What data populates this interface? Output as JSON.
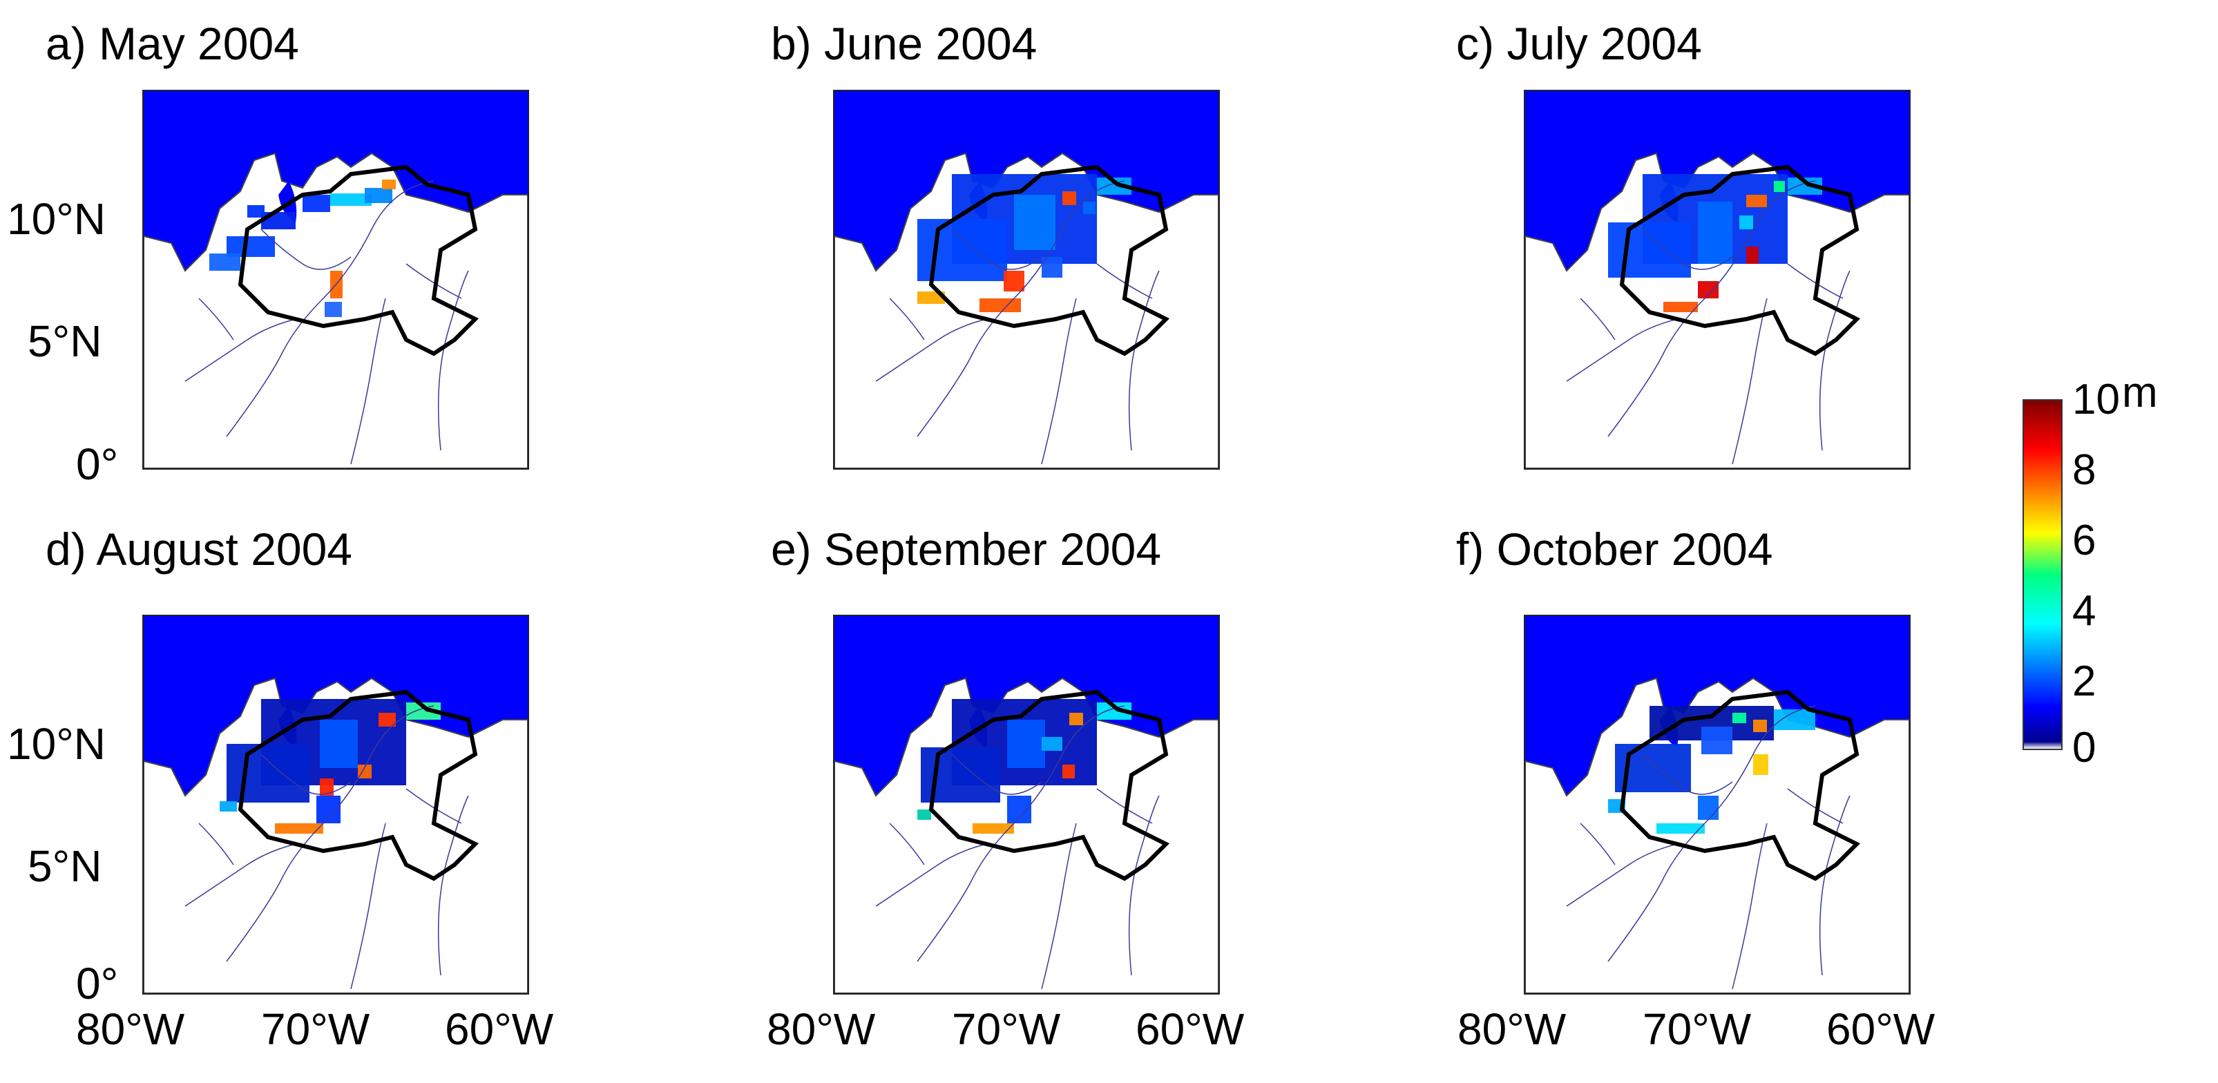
{
  "panels": [
    {
      "title": "a) May 2004"
    },
    {
      "title": "b) June 2004"
    },
    {
      "title": "c) July 2004"
    },
    {
      "title": "d) August 2004"
    },
    {
      "title": "e) September 2004"
    },
    {
      "title": "f) October 2004"
    }
  ],
  "axes": {
    "y_ticks": [
      "10°N",
      "5°N",
      "0°"
    ],
    "x_ticks": [
      "80°W",
      "70°W",
      "60°W"
    ]
  },
  "colorbar": {
    "unit": "m",
    "ticks": [
      "10",
      "8",
      "6",
      "4",
      "2",
      "0"
    ],
    "range": [
      0,
      10
    ],
    "colormap": "jet"
  },
  "colors": {
    "ocean": "#0000ff",
    "land": "#ffffff",
    "rivers": "#3a3a9a",
    "basin_outline": "#000000"
  }
}
